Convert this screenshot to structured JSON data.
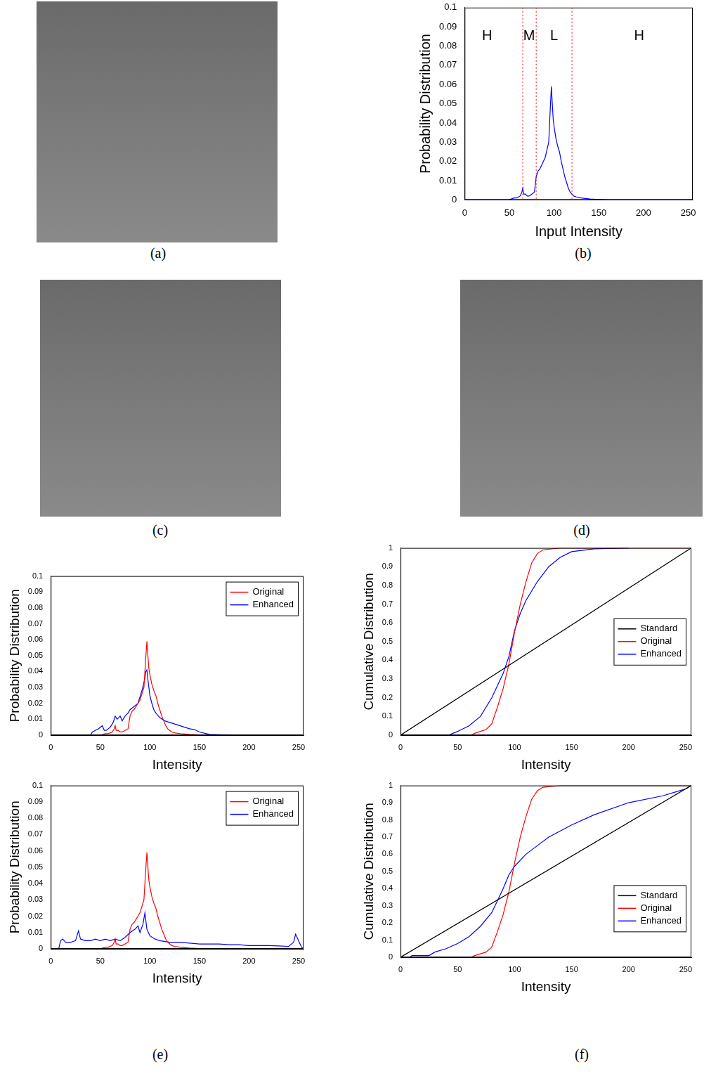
{
  "panel_labels": [
    "(a)",
    "(b)",
    "(c)",
    "(d)",
    "(e)",
    "(f)"
  ],
  "chart_data": [
    {
      "type": "line",
      "x_label": "Input Intensity",
      "y_label": "Probability Distribution",
      "xlim": [
        0,
        255
      ],
      "xticks": [
        0,
        50,
        100,
        150,
        200,
        250
      ],
      "ylim": [
        0,
        0.1
      ],
      "yticks": [
        0,
        0.01,
        0.02,
        0.03,
        0.04,
        0.05,
        0.06,
        0.07,
        0.08,
        0.09,
        0.1
      ],
      "series": [
        {
          "color": "#0000ff",
          "x": [
            0,
            50,
            55,
            58,
            60,
            62,
            64,
            65,
            66,
            68,
            70,
            72,
            75,
            78,
            79,
            80,
            82,
            84,
            86,
            88,
            90,
            92,
            94,
            95,
            96,
            97,
            98,
            99,
            100,
            102,
            104,
            106,
            108,
            110,
            112,
            114,
            116,
            118,
            120,
            122,
            125,
            130,
            140,
            150,
            160,
            200,
            255
          ],
          "values": [
            0,
            0,
            0.001,
            0.001,
            0.0015,
            0.002,
            0.004,
            0.006,
            0.003,
            0.003,
            0.002,
            0.002,
            0.003,
            0.004,
            0.008,
            0.012,
            0.015,
            0.016,
            0.018,
            0.02,
            0.022,
            0.026,
            0.03,
            0.04,
            0.05,
            0.059,
            0.05,
            0.042,
            0.038,
            0.032,
            0.028,
            0.025,
            0.02,
            0.016,
            0.012,
            0.009,
            0.006,
            0.004,
            0.003,
            0.002,
            0.0015,
            0.001,
            0.0005,
            0.0002,
            0,
            0,
            0
          ]
        }
      ],
      "vlines": {
        "x": [
          65,
          80,
          120
        ],
        "color": "#ff0000",
        "line_style": "dotted"
      },
      "annotations": [
        {
          "text": "H",
          "x": 25,
          "y": 0.085
        },
        {
          "text": "M",
          "x": 72,
          "y": 0.085
        },
        {
          "text": "L",
          "x": 100,
          "y": 0.085
        },
        {
          "text": "H",
          "x": 195,
          "y": 0.085
        }
      ]
    },
    {
      "type": "line",
      "x_label": "Intensity",
      "y_label": "Probability Distribution",
      "xlim": [
        0,
        255
      ],
      "xticks": [
        0,
        50,
        100,
        150,
        200,
        250
      ],
      "ylim": [
        0,
        0.1
      ],
      "yticks": [
        0,
        0.01,
        0.02,
        0.03,
        0.04,
        0.05,
        0.06,
        0.07,
        0.08,
        0.09,
        0.1
      ],
      "legend": "upper right",
      "series": [
        {
          "name": "Original",
          "color": "#ff0000",
          "x": [
            0,
            50,
            55,
            58,
            60,
            62,
            64,
            65,
            66,
            68,
            70,
            72,
            75,
            78,
            79,
            80,
            82,
            84,
            86,
            88,
            90,
            92,
            94,
            95,
            96,
            97,
            98,
            99,
            100,
            102,
            104,
            106,
            108,
            110,
            112,
            114,
            116,
            118,
            120,
            122,
            125,
            130,
            140,
            150,
            160,
            200,
            255
          ],
          "values": [
            0,
            0,
            0.001,
            0.001,
            0.0015,
            0.002,
            0.004,
            0.006,
            0.003,
            0.003,
            0.002,
            0.002,
            0.003,
            0.004,
            0.008,
            0.012,
            0.015,
            0.016,
            0.018,
            0.02,
            0.022,
            0.026,
            0.03,
            0.04,
            0.05,
            0.059,
            0.05,
            0.042,
            0.038,
            0.032,
            0.028,
            0.025,
            0.02,
            0.016,
            0.012,
            0.009,
            0.006,
            0.004,
            0.003,
            0.002,
            0.0015,
            0.001,
            0.0005,
            0.0002,
            0,
            0,
            0
          ]
        },
        {
          "name": "Enhanced",
          "color": "#0000ff",
          "x": [
            0,
            40,
            42,
            45,
            48,
            50,
            52,
            54,
            56,
            60,
            63,
            65,
            67,
            70,
            72,
            75,
            78,
            80,
            84,
            88,
            90,
            92,
            94,
            96,
            97,
            98,
            100,
            102,
            104,
            106,
            110,
            115,
            120,
            125,
            130,
            135,
            140,
            145,
            150,
            160,
            170,
            200,
            225,
            255
          ],
          "values": [
            0,
            0,
            0.002,
            0.003,
            0.004,
            0.005,
            0.006,
            0.003,
            0.003,
            0.005,
            0.008,
            0.012,
            0.01,
            0.012,
            0.009,
            0.012,
            0.014,
            0.016,
            0.018,
            0.02,
            0.024,
            0.028,
            0.033,
            0.04,
            0.041,
            0.035,
            0.025,
            0.02,
            0.016,
            0.014,
            0.011,
            0.009,
            0.008,
            0.007,
            0.006,
            0.005,
            0.004,
            0.0035,
            0.002,
            0.0005,
            0.0003,
            0.0001,
            0,
            0
          ]
        }
      ]
    },
    {
      "type": "line",
      "x_label": "Intensity",
      "y_label": "Probability Distribution",
      "xlim": [
        0,
        255
      ],
      "xticks": [
        0,
        50,
        100,
        150,
        200,
        250
      ],
      "ylim": [
        0,
        0.1
      ],
      "yticks": [
        0,
        0.01,
        0.02,
        0.03,
        0.04,
        0.05,
        0.06,
        0.07,
        0.08,
        0.09,
        0.1
      ],
      "legend": "upper right",
      "series": [
        {
          "name": "Original",
          "color": "#ff0000",
          "x": [
            0,
            50,
            55,
            58,
            60,
            62,
            64,
            65,
            66,
            68,
            70,
            72,
            75,
            78,
            79,
            80,
            82,
            84,
            86,
            88,
            90,
            92,
            94,
            95,
            96,
            97,
            98,
            99,
            100,
            102,
            104,
            106,
            108,
            110,
            112,
            114,
            116,
            118,
            120,
            122,
            125,
            130,
            140,
            150,
            160,
            200,
            255
          ],
          "values": [
            0,
            0,
            0.001,
            0.001,
            0.0015,
            0.002,
            0.004,
            0.006,
            0.003,
            0.003,
            0.002,
            0.002,
            0.003,
            0.004,
            0.008,
            0.012,
            0.015,
            0.016,
            0.018,
            0.02,
            0.022,
            0.026,
            0.03,
            0.04,
            0.05,
            0.059,
            0.05,
            0.042,
            0.038,
            0.032,
            0.028,
            0.025,
            0.02,
            0.016,
            0.012,
            0.009,
            0.006,
            0.004,
            0.003,
            0.002,
            0.0015,
            0.001,
            0.0005,
            0.0002,
            0,
            0,
            0
          ]
        },
        {
          "name": "Enhanced",
          "color": "#0000ff",
          "x": [
            0,
            8,
            10,
            12,
            15,
            20,
            25,
            28,
            30,
            35,
            40,
            45,
            50,
            55,
            60,
            65,
            70,
            75,
            80,
            85,
            88,
            90,
            93,
            95,
            97,
            100,
            105,
            110,
            120,
            130,
            140,
            150,
            160,
            170,
            180,
            190,
            200,
            210,
            220,
            230,
            240,
            245,
            247,
            250,
            253,
            255
          ],
          "values": [
            0,
            0,
            0.005,
            0.006,
            0.004,
            0.004,
            0.005,
            0.011,
            0.006,
            0.005,
            0.005,
            0.006,
            0.005,
            0.006,
            0.005,
            0.006,
            0.005,
            0.007,
            0.01,
            0.012,
            0.014,
            0.01,
            0.015,
            0.022,
            0.012,
            0.008,
            0.006,
            0.005,
            0.004,
            0.004,
            0.0035,
            0.003,
            0.003,
            0.003,
            0.0025,
            0.0025,
            0.002,
            0.002,
            0.002,
            0.0018,
            0.0015,
            0.004,
            0.009,
            0.005,
            0.001,
            0
          ]
        }
      ]
    },
    {
      "type": "line",
      "x_label": "Intensity",
      "y_label": "Cumulative Distribution",
      "xlim": [
        0,
        255
      ],
      "xticks": [
        0,
        50,
        100,
        150,
        200,
        250
      ],
      "ylim": [
        0,
        1
      ],
      "yticks": [
        0,
        0.1,
        0.2,
        0.3,
        0.4,
        0.5,
        0.6,
        0.7,
        0.8,
        0.9,
        1
      ],
      "legend": "center right",
      "series": [
        {
          "name": "Standard",
          "color": "#000000",
          "x": [
            0,
            255
          ],
          "values": [
            0,
            1
          ]
        },
        {
          "name": "Original",
          "color": "#ff0000",
          "x": [
            0,
            62,
            65,
            70,
            75,
            80,
            85,
            90,
            95,
            100,
            105,
            110,
            115,
            120,
            125,
            140,
            255
          ],
          "values": [
            0,
            0,
            0.01,
            0.02,
            0.03,
            0.06,
            0.15,
            0.25,
            0.38,
            0.55,
            0.7,
            0.82,
            0.92,
            0.97,
            0.99,
            1,
            1
          ]
        },
        {
          "name": "Enhanced",
          "color": "#0000ff",
          "x": [
            0,
            42,
            50,
            60,
            70,
            80,
            90,
            95,
            100,
            105,
            110,
            120,
            130,
            140,
            150,
            170,
            200
          ],
          "values": [
            0,
            0,
            0.02,
            0.05,
            0.1,
            0.2,
            0.33,
            0.42,
            0.56,
            0.65,
            0.72,
            0.82,
            0.9,
            0.95,
            0.98,
            0.995,
            1
          ]
        }
      ]
    },
    {
      "type": "line",
      "x_label": "Intensity",
      "y_label": "Cumulative Distribution",
      "xlim": [
        0,
        255
      ],
      "xticks": [
        0,
        50,
        100,
        150,
        200,
        250
      ],
      "ylim": [
        0,
        1
      ],
      "yticks": [
        0,
        0.1,
        0.2,
        0.3,
        0.4,
        0.5,
        0.6,
        0.7,
        0.8,
        0.9,
        1
      ],
      "legend": "lower right",
      "series": [
        {
          "name": "Standard",
          "color": "#000000",
          "x": [
            0,
            255
          ],
          "values": [
            0,
            1
          ]
        },
        {
          "name": "Original",
          "color": "#ff0000",
          "x": [
            0,
            62,
            65,
            70,
            75,
            80,
            85,
            90,
            95,
            100,
            105,
            110,
            115,
            120,
            125,
            140,
            255
          ],
          "values": [
            0,
            0,
            0.01,
            0.02,
            0.03,
            0.06,
            0.15,
            0.25,
            0.38,
            0.55,
            0.7,
            0.82,
            0.92,
            0.97,
            0.99,
            1,
            1
          ]
        },
        {
          "name": "Enhanced",
          "color": "#0000ff",
          "x": [
            0,
            8,
            10,
            25,
            30,
            40,
            50,
            60,
            70,
            80,
            90,
            95,
            100,
            110,
            120,
            130,
            150,
            170,
            200,
            230,
            245,
            250,
            255
          ],
          "values": [
            0,
            0,
            0.01,
            0.01,
            0.03,
            0.05,
            0.08,
            0.12,
            0.18,
            0.26,
            0.4,
            0.48,
            0.53,
            0.6,
            0.65,
            0.7,
            0.77,
            0.83,
            0.9,
            0.94,
            0.97,
            0.98,
            1
          ]
        }
      ]
    }
  ]
}
